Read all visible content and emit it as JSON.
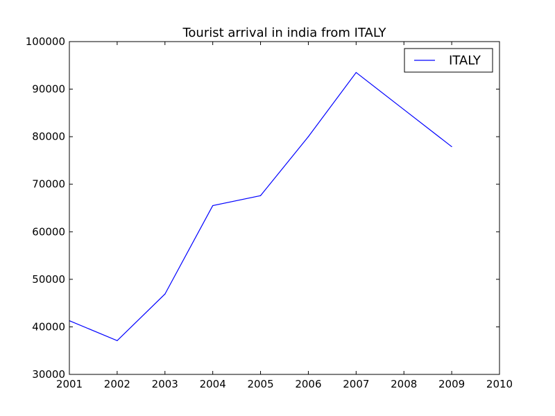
{
  "chart_data": {
    "type": "line",
    "title": "Tourist arrival in india from ITALY",
    "xlabel": "",
    "ylabel": "",
    "xlim": [
      2001,
      2010
    ],
    "ylim": [
      30000,
      100000
    ],
    "x_ticks": [
      "2001",
      "2002",
      "2003",
      "2004",
      "2005",
      "2006",
      "2007",
      "2008",
      "2009",
      "2010"
    ],
    "y_ticks": [
      "30000",
      "40000",
      "50000",
      "60000",
      "70000",
      "80000",
      "90000",
      "100000"
    ],
    "grid": false,
    "legend_position": "top-right",
    "series": [
      {
        "name": "ITALY",
        "color": "#0000ff",
        "x": [
          2001,
          2002,
          2003,
          2004,
          2005,
          2006,
          2007,
          2008,
          2009
        ],
        "values": [
          41300,
          37100,
          46900,
          65500,
          67600,
          80000,
          93500,
          85700,
          77900
        ]
      }
    ]
  }
}
